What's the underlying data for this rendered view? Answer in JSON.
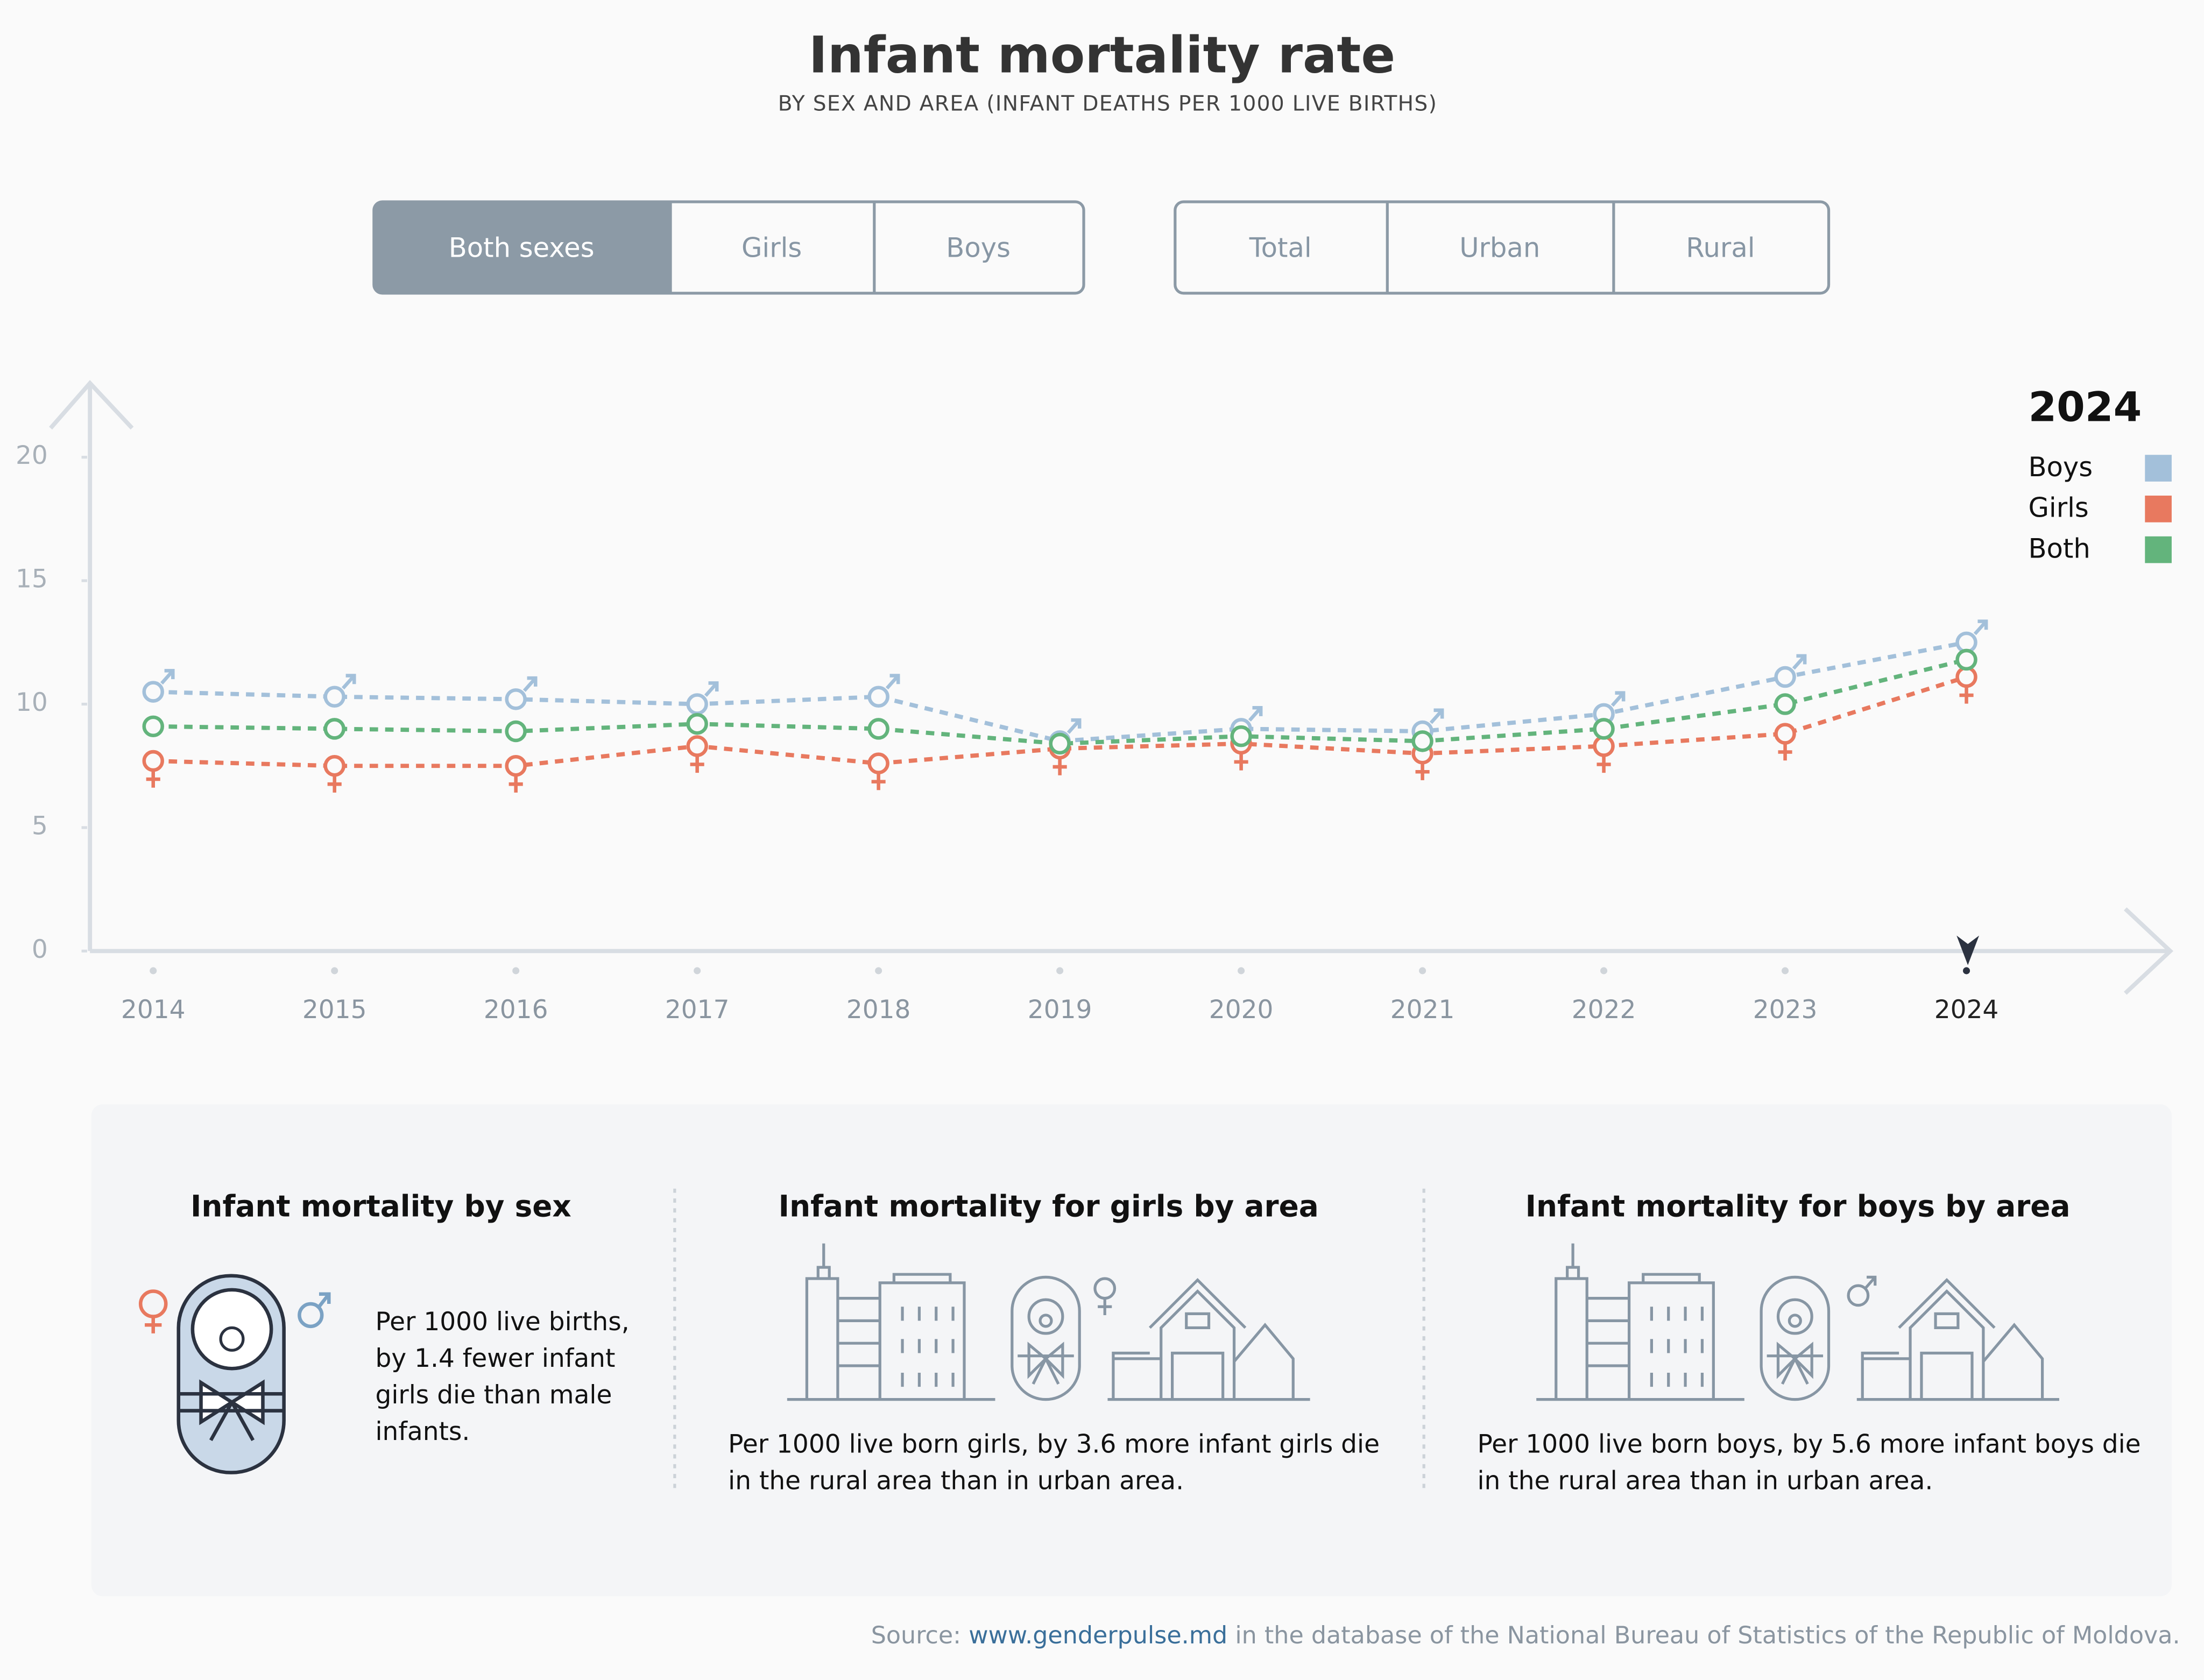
{
  "header": {
    "title": "Infant mortality rate",
    "subtitle": "BY SEX AND AREA (INFANT DEATHS PER 1000 LIVE BIRTHS)"
  },
  "controls": {
    "sex": [
      "Both sexes",
      "Girls",
      "Boys"
    ],
    "area": [
      "Total",
      "Urban",
      "Rural"
    ]
  },
  "chart_data": {
    "type": "line",
    "categories": [
      "2014",
      "2015",
      "2016",
      "2017",
      "2018",
      "2019",
      "2020",
      "2021",
      "2022",
      "2023",
      "2024"
    ],
    "series": [
      {
        "name": "Boys",
        "color": "#a3c0da",
        "values": [
          10.5,
          10.3,
          10.2,
          10.0,
          10.3,
          8.5,
          9.0,
          8.9,
          9.6,
          11.1,
          12.5
        ]
      },
      {
        "name": "Girls",
        "color": "#e8795f",
        "values": [
          7.7,
          7.5,
          7.5,
          8.3,
          7.6,
          8.2,
          8.4,
          8.0,
          8.3,
          8.8,
          11.1
        ]
      },
      {
        "name": "Both",
        "color": "#63b47c",
        "values": [
          9.1,
          9.0,
          8.9,
          9.2,
          9.0,
          8.4,
          8.7,
          8.5,
          9.0,
          10.0,
          11.8
        ]
      }
    ],
    "ylim": [
      0,
      23
    ],
    "yticks": [
      0,
      5,
      10,
      15,
      20
    ],
    "grid": false,
    "legend_title": "2024",
    "legend_position": "top-right",
    "dashed": true
  },
  "panels": [
    {
      "title": "Infant mortality by sex",
      "lines": [
        "Per 1000 live births,",
        "by 1.4 fewer infant",
        "girls die than male",
        "infants."
      ]
    },
    {
      "title": "Infant mortality for girls by area",
      "lines": [
        "Per 1000 live born girls, by 3.6 more infant girls die",
        "in the rural area than in urban area."
      ]
    },
    {
      "title": "Infant mortality for boys by area",
      "lines": [
        "Per 1000 live born boys, by 5.6 more infant boys die",
        "in the rural area than in urban area."
      ]
    }
  ],
  "source": {
    "prefix": "Source:",
    "link": "www.genderpulse.md",
    "suffix": "in the database of the National Bureau of Statistics of the Republic of Moldova."
  }
}
